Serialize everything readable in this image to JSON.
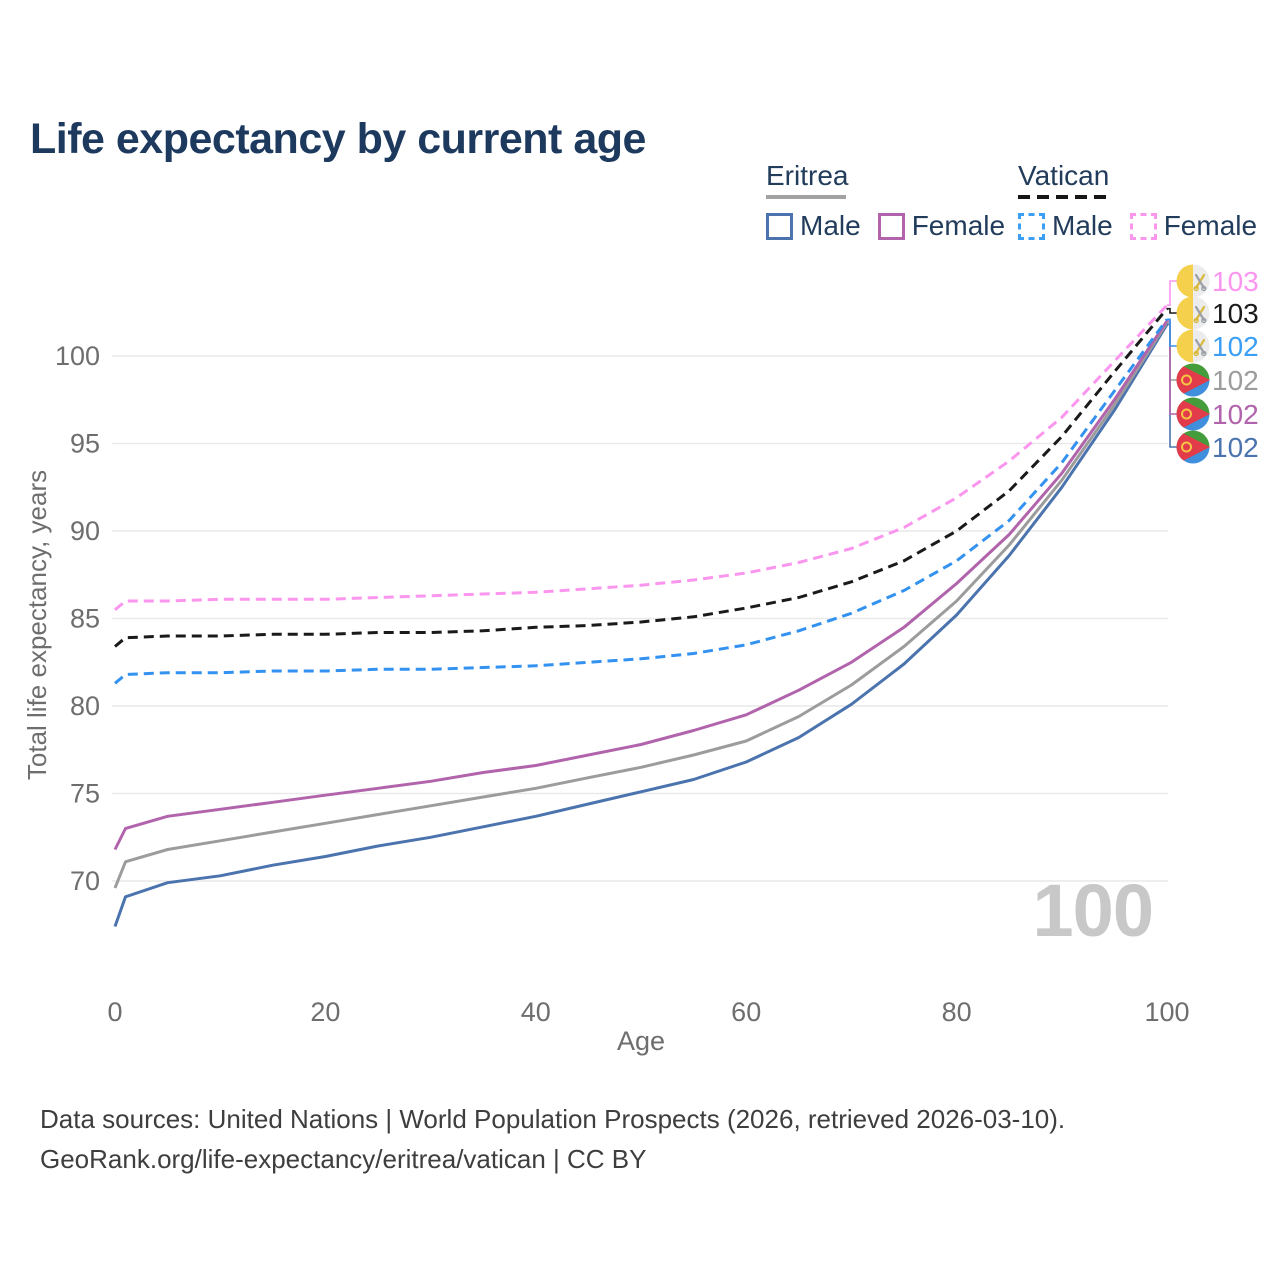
{
  "title": "Life expectancy by current age",
  "watermark": "100",
  "legend": {
    "groups": [
      {
        "country": "Eritrea",
        "line_style": "solid",
        "line_color": "#a2a2a2",
        "items": [
          {
            "label": "Male",
            "color": "#4b73ae"
          },
          {
            "label": "Female",
            "color": "#b164ab"
          }
        ]
      },
      {
        "country": "Vatican",
        "line_style": "dashed",
        "line_color": "#161616",
        "items": [
          {
            "label": "Male",
            "color": "#3b9ff5"
          },
          {
            "label": "Female",
            "color": "#fb96ef"
          }
        ]
      }
    ]
  },
  "footer": {
    "line1": "Data sources: United Nations | World Population Prospects (2026, retrieved 2026-03-10).",
    "line2": "GeoRank.org/life-expectancy/eritrea/vatican | CC BY"
  },
  "chart_data": {
    "type": "line",
    "title": "Life expectancy by current age",
    "xlabel": "Age",
    "ylabel": "Total life expectancy, years",
    "x_ticks": [
      0,
      20,
      40,
      60,
      80,
      100
    ],
    "y_ticks": [
      70,
      75,
      80,
      85,
      90,
      95,
      100
    ],
    "xlim": [
      0,
      100
    ],
    "ylim": [
      66,
      104
    ],
    "grid": "horizontal-only",
    "legend_position": "top-right",
    "x": [
      0,
      1,
      5,
      10,
      15,
      20,
      25,
      30,
      35,
      40,
      45,
      50,
      55,
      60,
      65,
      70,
      75,
      80,
      85,
      90,
      95,
      100
    ],
    "series": [
      {
        "name": "Eritrea Male",
        "country": "Eritrea",
        "sex": "Male",
        "color": "#4b73ae",
        "dashed": false,
        "flag": "eritrea",
        "end_label": "102",
        "end_label_color": "#4b73ae",
        "end_slot": 5,
        "values": [
          67.4,
          69.1,
          69.9,
          70.3,
          70.9,
          71.4,
          72.0,
          72.5,
          73.1,
          73.7,
          74.4,
          75.1,
          75.8,
          76.8,
          78.2,
          80.1,
          82.4,
          85.2,
          88.6,
          92.5,
          96.9,
          101.8
        ]
      },
      {
        "name": "Eritrea",
        "country": "Eritrea",
        "sex": "Both",
        "color": "#9c9c9c",
        "dashed": false,
        "flag": "eritrea",
        "end_label": "102",
        "end_label_color": "#9c9c9c",
        "end_slot": 3,
        "values": [
          69.6,
          71.1,
          71.8,
          72.3,
          72.8,
          73.3,
          73.8,
          74.3,
          74.8,
          75.3,
          75.9,
          76.5,
          77.2,
          78.0,
          79.4,
          81.2,
          83.4,
          86.0,
          89.2,
          92.9,
          97.2,
          101.9
        ]
      },
      {
        "name": "Eritrea Female",
        "country": "Eritrea",
        "sex": "Female",
        "color": "#b164ab",
        "dashed": false,
        "flag": "eritrea",
        "end_label": "102",
        "end_label_color": "#b164ab",
        "end_slot": 4,
        "values": [
          71.8,
          73.0,
          73.7,
          74.1,
          74.5,
          74.9,
          75.3,
          75.7,
          76.2,
          76.6,
          77.2,
          77.8,
          78.6,
          79.5,
          80.9,
          82.5,
          84.5,
          87.0,
          89.8,
          93.3,
          97.5,
          102.0
        ]
      },
      {
        "name": "Vatican Male",
        "country": "Vatican",
        "sex": "Male",
        "color": "#3392f0",
        "dashed": true,
        "flag": "vatican",
        "end_label": "102",
        "end_label_color": "#3b9ff5",
        "end_slot": 2,
        "values": [
          81.3,
          81.8,
          81.9,
          81.9,
          82.0,
          82.0,
          82.1,
          82.1,
          82.2,
          82.3,
          82.5,
          82.7,
          83.0,
          83.5,
          84.3,
          85.3,
          86.6,
          88.3,
          90.6,
          93.9,
          98.0,
          102.1
        ]
      },
      {
        "name": "Vatican",
        "country": "Vatican",
        "sex": "Both",
        "color": "#1a1a1a",
        "dashed": true,
        "flag": "vatican",
        "end_label": "103",
        "end_label_color": "#1a1a1a",
        "end_slot": 1,
        "values": [
          83.4,
          83.9,
          84.0,
          84.0,
          84.1,
          84.1,
          84.2,
          84.2,
          84.3,
          84.5,
          84.6,
          84.8,
          85.1,
          85.6,
          86.2,
          87.1,
          88.3,
          90.0,
          92.3,
          95.4,
          99.1,
          102.7
        ]
      },
      {
        "name": "Vatican Female",
        "country": "Vatican",
        "sex": "Female",
        "color": "#fb96ef",
        "dashed": true,
        "flag": "vatican",
        "end_label": "103",
        "end_label_color": "#fb96ef",
        "end_slot": 0,
        "values": [
          85.5,
          86.0,
          86.0,
          86.1,
          86.1,
          86.1,
          86.2,
          86.3,
          86.4,
          86.5,
          86.7,
          86.9,
          87.2,
          87.6,
          88.2,
          89.0,
          90.2,
          91.9,
          94.0,
          96.5,
          99.7,
          102.9
        ]
      }
    ]
  }
}
